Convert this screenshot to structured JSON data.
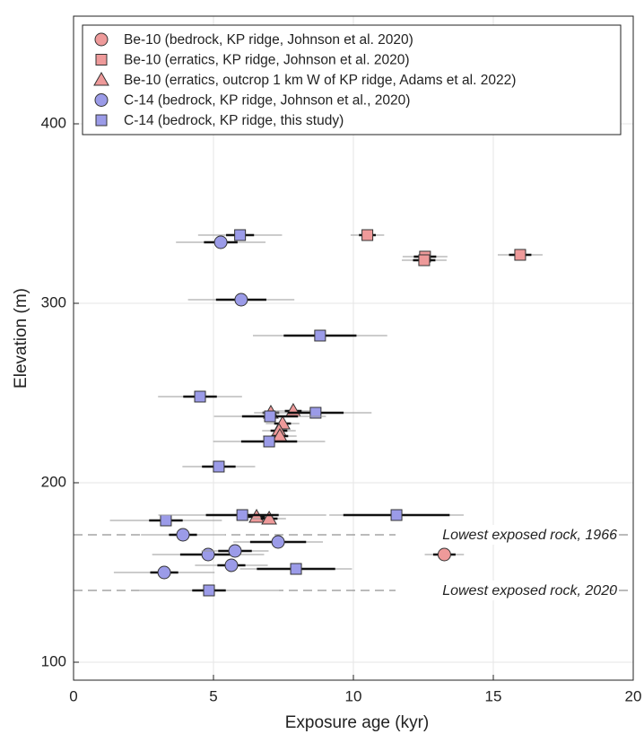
{
  "chart_data": {
    "type": "scatter",
    "xlabel": "Exposure age (kyr)",
    "ylabel": "Elevation (m)",
    "xlim": [
      0,
      20
    ],
    "ylim": [
      90,
      460
    ],
    "xticks": [
      0,
      5,
      10,
      15,
      20
    ],
    "yticks": [
      100,
      200,
      300,
      400
    ],
    "grid": true,
    "legend": "top",
    "hlines": [
      {
        "y": 171,
        "label": "Lowest exposed rock, 1966"
      },
      {
        "y": 140,
        "label": "Lowest exposed rock, 2020"
      }
    ],
    "series": [
      {
        "name": "Be-10 (bedrock, KP ridge, Johnson et al. 2020)",
        "marker": "circle",
        "color": "#ee9a9a",
        "x": [
          13.25
        ],
        "y": [
          160
        ],
        "err_int": [
          0.4
        ],
        "err_ext": [
          0.7
        ]
      },
      {
        "name": "Be-10 (erratics, KP ridge, Johnson et al. 2020)",
        "marker": "square",
        "color": "#ee9a9a",
        "x": [
          10.5,
          12.56,
          12.53,
          15.96
        ],
        "y": [
          338,
          326,
          324,
          327
        ],
        "err_int": [
          0.3,
          0.4,
          0.4,
          0.4
        ],
        "err_ext": [
          0.6,
          0.8,
          0.8,
          0.8
        ]
      },
      {
        "name": "Be-10 (erratics, outcrop 1 km W of KP ridge, Adams et al. 2022)",
        "marker": "triangle",
        "color": "#ee9a9a",
        "x": [
          7.05,
          7.85,
          7.47,
          7.34,
          7.37,
          6.54,
          6.99
        ],
        "y": [
          239,
          240,
          233,
          229,
          226,
          181,
          180
        ],
        "err_int": [
          0.3,
          0.3,
          0.3,
          0.3,
          0.3,
          0.3,
          0.3
        ],
        "err_ext": [
          0.6,
          0.6,
          0.6,
          0.6,
          0.6,
          0.6,
          0.6
        ]
      },
      {
        "name": "C-14 (bedrock, KP ridge, Johnson et al., 2020)",
        "marker": "circle",
        "color": "#9b9be8",
        "x": [
          5.26,
          5.99,
          3.91,
          7.31,
          4.81,
          5.77,
          5.64,
          3.24
        ],
        "y": [
          334,
          302,
          171,
          167,
          160,
          162,
          154,
          150
        ],
        "err_int": [
          0.6,
          0.9,
          0.5,
          1.0,
          1.0,
          0.6,
          0.5,
          0.5
        ],
        "err_ext": [
          1.6,
          1.9,
          1.5,
          1.6,
          2.0,
          1.2,
          1.3,
          1.8
        ]
      },
      {
        "name": "C-14 (bedrock, KP ridge, this study)",
        "marker": "square",
        "color": "#9b9be8",
        "x": [
          5.95,
          8.81,
          4.52,
          8.65,
          7.02,
          6.99,
          5.19,
          3.3,
          6.03,
          11.54,
          7.95,
          4.84
        ],
        "y": [
          338,
          282,
          248,
          239,
          237,
          223,
          209,
          179,
          182,
          182,
          152,
          140
        ],
        "err_int": [
          0.5,
          1.3,
          0.6,
          1.0,
          1.0,
          1.0,
          0.6,
          0.6,
          1.3,
          1.9,
          1.4,
          0.6
        ],
        "err_ext": [
          1.5,
          2.4,
          1.5,
          2.0,
          2.0,
          2.0,
          1.3,
          2.0,
          3.0,
          2.4,
          2.0,
          2.5
        ]
      }
    ]
  }
}
